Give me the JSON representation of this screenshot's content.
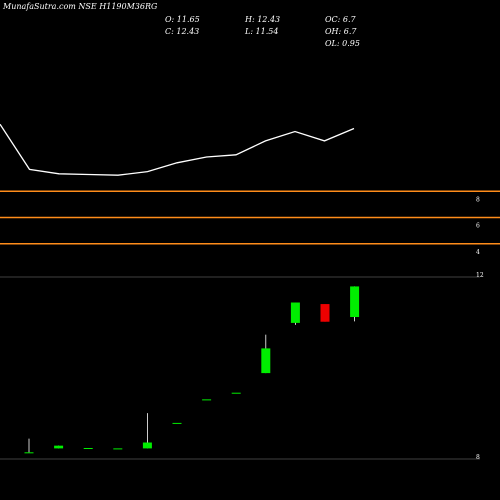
{
  "header": {
    "title": "MunafaSutra.com NSE H1190M36RG",
    "open": "O: 11.65",
    "close": "C: 12.43",
    "high": "H: 12.43",
    "low": "L: 11.54",
    "oc": "OC: 6.7",
    "oh": "OH: 6.7",
    "ol": "OL: 0.95"
  },
  "colors": {
    "background": "#000000",
    "line": "#ffffff",
    "hline": "#ff8c1a",
    "up": "#00ee00",
    "down": "#ee0000"
  },
  "chart_data": [
    {
      "type": "line",
      "x": [
        0,
        1,
        2,
        3,
        4,
        5,
        6,
        7,
        8,
        9,
        10,
        11,
        12
      ],
      "values": [
        10.4,
        7.3,
        7.0,
        6.95,
        6.9,
        7.15,
        7.75,
        8.15,
        8.3,
        9.25,
        9.9,
        9.25,
        10.1
      ],
      "ylim": [
        5.2,
        12.4
      ]
    },
    {
      "type": "line",
      "title": "",
      "tick_labels": [
        "8",
        "6",
        "4"
      ],
      "values": [
        8,
        6,
        4
      ],
      "ylim": [
        2,
        10
      ]
    },
    {
      "type": "candlestick",
      "y_tick_labels": [
        "12",
        "8"
      ],
      "ylim": [
        7.8,
        12.9
      ],
      "candles": [
        {
          "open": 8.2,
          "high": 8.55,
          "low": 8.2,
          "close": 8.2
        },
        {
          "open": 8.3,
          "high": 8.37,
          "low": 8.3,
          "close": 8.37
        },
        {
          "open": 8.31,
          "high": 8.31,
          "low": 8.31,
          "close": 8.31
        },
        {
          "open": 8.3,
          "high": 8.3,
          "low": 8.3,
          "close": 8.3
        },
        {
          "open": 8.3,
          "high": 9.2,
          "low": 8.3,
          "close": 8.45
        },
        {
          "open": 8.95,
          "high": 8.95,
          "low": 8.95,
          "close": 8.95
        },
        {
          "open": 9.55,
          "high": 9.55,
          "low": 9.55,
          "close": 9.55
        },
        {
          "open": 9.72,
          "high": 9.72,
          "low": 9.72,
          "close": 9.72
        },
        {
          "open": 10.22,
          "high": 11.2,
          "low": 10.22,
          "close": 10.85
        },
        {
          "open": 11.5,
          "high": 12.02,
          "low": 11.45,
          "close": 12.02
        },
        {
          "open": 11.98,
          "high": 11.98,
          "low": 11.53,
          "close": 11.53
        },
        {
          "open": 11.65,
          "high": 12.43,
          "low": 11.54,
          "close": 12.43
        }
      ]
    }
  ]
}
